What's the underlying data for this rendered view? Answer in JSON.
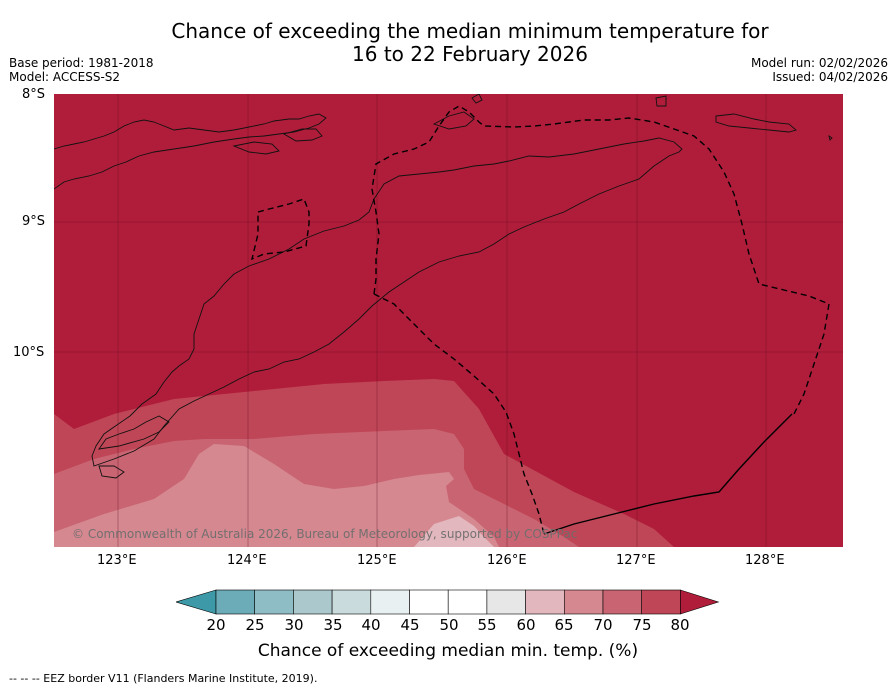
{
  "title": {
    "line1": "Chance of exceeding the median minimum temperature for",
    "line2": "16 to 22 February 2026"
  },
  "meta": {
    "base_period": "Base period: 1981-2018",
    "model": "Model: ACCESS-S2",
    "model_run": "Model run: 02/02/2026",
    "issued": "Issued: 04/02/2026"
  },
  "axes": {
    "lat_labels": [
      "8°S",
      "9°S",
      "10°S"
    ],
    "lon_labels": [
      "123°E",
      "124°E",
      "125°E",
      "126°E",
      "127°E",
      "128°E"
    ]
  },
  "map": {
    "lat_range": [
      -11.5,
      -8.0
    ],
    "lon_range": [
      122.5,
      128.6
    ],
    "attribution": "© Commonwealth of Australia 2026, Bureau of Meteorology, supported by COSPPac"
  },
  "colorbar": {
    "ticks": [
      "20",
      "25",
      "30",
      "35",
      "40",
      "45",
      "50",
      "55",
      "60",
      "65",
      "70",
      "75",
      "80"
    ],
    "colors": [
      "#3d99a8",
      "#6cabb8",
      "#8fbdc5",
      "#abc9cd",
      "#c9dbdc",
      "#e9f0f1",
      "#ffffff",
      "#ffffff",
      "#e7e7e7",
      "#e3b7be",
      "#d58890",
      "#c96472",
      "#bf4656",
      "#b01d3a"
    ],
    "title": "Chance of exceeding median min. temp. (%)"
  },
  "footer": "--  --  -- EEZ border V11 (Flanders Marine Institute, 2019)."
}
